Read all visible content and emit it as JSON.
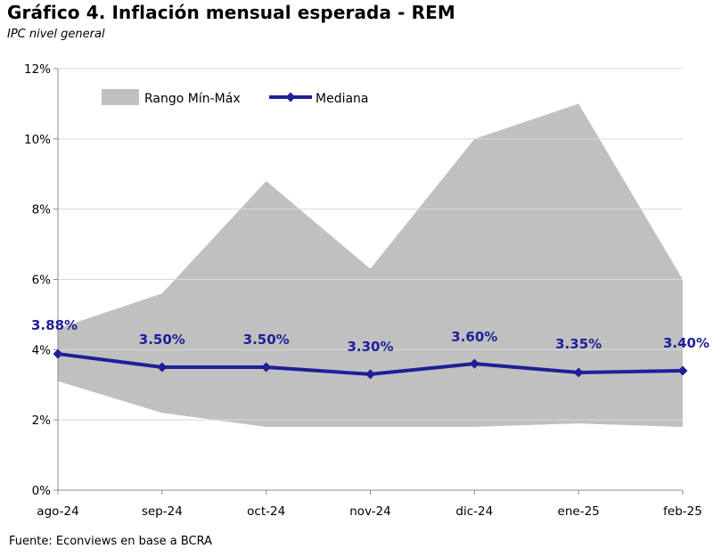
{
  "title": "Gráfico 4. Inflación mensual esperada - REM",
  "subtitle": "IPC nivel general",
  "source": "Fuente: Econviews en base a BCRA",
  "chart_data": {
    "type": "line",
    "categories": [
      "ago-24",
      "sep-24",
      "oct-24",
      "nov-24",
      "dic-24",
      "ene-25",
      "feb-25"
    ],
    "ylim": [
      0,
      12
    ],
    "yticks": [
      0,
      2,
      4,
      6,
      8,
      10,
      12
    ],
    "ytick_labels": [
      "0%",
      "2%",
      "4%",
      "6%",
      "8%",
      "10%",
      "12%"
    ],
    "grid": "horizontal",
    "legend_position": "top-left",
    "series": [
      {
        "name": "Rango Mín-Máx",
        "kind": "area-range",
        "color": "#c0c0c0",
        "min": [
          3.1,
          2.2,
          1.8,
          1.8,
          1.8,
          1.9,
          1.8
        ],
        "max": [
          4.6,
          5.6,
          8.8,
          6.3,
          10.0,
          11.0,
          6.0
        ]
      },
      {
        "name": "Mediana",
        "kind": "line",
        "color": "#1f1f99",
        "values": [
          3.88,
          3.5,
          3.5,
          3.3,
          3.6,
          3.35,
          3.4
        ],
        "data_labels": [
          "3.88%",
          "3.50%",
          "3.50%",
          "3.30%",
          "3.60%",
          "3.35%",
          "3.40%"
        ]
      }
    ]
  }
}
